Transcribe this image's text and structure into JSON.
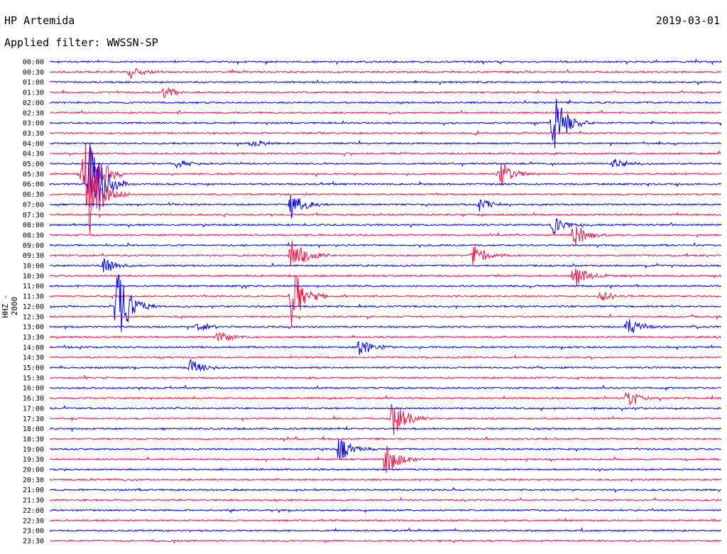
{
  "header": {
    "station": "HP Artemida",
    "date": "2019-03-01",
    "filter": "Applied filter: WWSSN-SP"
  },
  "chart_data": {
    "type": "line",
    "ylabel": "HHZ - 2000",
    "colors": [
      "#0000ee",
      "#ee1144"
    ],
    "rows": [
      "00:00",
      "00:30",
      "01:00",
      "01:30",
      "02:00",
      "02:30",
      "03:00",
      "03:30",
      "04:00",
      "04:30",
      "05:00",
      "05:30",
      "06:00",
      "06:30",
      "07:00",
      "07:30",
      "08:00",
      "08:30",
      "09:00",
      "09:30",
      "10:00",
      "10:30",
      "11:00",
      "11:30",
      "12:00",
      "12:30",
      "13:00",
      "13:30",
      "14:00",
      "14:30",
      "15:00",
      "15:30",
      "16:00",
      "16:30",
      "17:00",
      "17:30",
      "18:00",
      "18:30",
      "19:00",
      "19:30",
      "20:00",
      "20:30",
      "21:00",
      "21:30",
      "22:00",
      "22:30",
      "23:00",
      "23:30"
    ],
    "events": [
      {
        "row": 1,
        "t": 0.12,
        "amp": 12
      },
      {
        "row": 3,
        "t": 0.17,
        "amp": 8
      },
      {
        "row": 8,
        "t": 0.3,
        "amp": 7
      },
      {
        "row": 11,
        "t": 0.05,
        "amp": 90
      },
      {
        "row": 12,
        "t": 0.06,
        "amp": 70
      },
      {
        "row": 13,
        "t": 0.06,
        "amp": 60
      },
      {
        "row": 10,
        "t": 0.19,
        "amp": 8
      },
      {
        "row": 14,
        "t": 0.36,
        "amp": 22
      },
      {
        "row": 19,
        "t": 0.36,
        "amp": 30
      },
      {
        "row": 23,
        "t": 0.36,
        "amp": 45
      },
      {
        "row": 24,
        "t": 0.1,
        "amp": 60
      },
      {
        "row": 26,
        "t": 0.22,
        "amp": 8
      },
      {
        "row": 27,
        "t": 0.25,
        "amp": 10
      },
      {
        "row": 28,
        "t": 0.46,
        "amp": 14
      },
      {
        "row": 30,
        "t": 0.21,
        "amp": 14
      },
      {
        "row": 35,
        "t": 0.51,
        "amp": 30
      },
      {
        "row": 38,
        "t": 0.43,
        "amp": 20
      },
      {
        "row": 39,
        "t": 0.5,
        "amp": 25
      },
      {
        "row": 6,
        "t": 0.75,
        "amp": 45
      },
      {
        "row": 11,
        "t": 0.67,
        "amp": 20
      },
      {
        "row": 14,
        "t": 0.64,
        "amp": 10
      },
      {
        "row": 16,
        "t": 0.75,
        "amp": 14
      },
      {
        "row": 17,
        "t": 0.78,
        "amp": 18
      },
      {
        "row": 19,
        "t": 0.63,
        "amp": 18
      },
      {
        "row": 21,
        "t": 0.78,
        "amp": 20
      },
      {
        "row": 23,
        "t": 0.82,
        "amp": 10
      },
      {
        "row": 26,
        "t": 0.86,
        "amp": 15
      },
      {
        "row": 33,
        "t": 0.86,
        "amp": 15
      },
      {
        "row": 10,
        "t": 0.84,
        "amp": 8
      },
      {
        "row": 20,
        "t": 0.08,
        "amp": 12
      }
    ]
  }
}
